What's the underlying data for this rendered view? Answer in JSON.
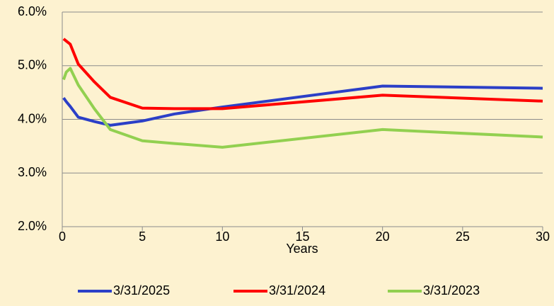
{
  "chart_data": {
    "type": "line",
    "x_label": "Years",
    "x": [
      0.083,
      0.25,
      0.5,
      1,
      2,
      3,
      5,
      7,
      10,
      20,
      30
    ],
    "series": [
      {
        "name": "3/31/2025",
        "color": "#2b3fc7",
        "values": [
          4.4,
          4.33,
          4.24,
          4.04,
          3.96,
          3.89,
          3.97,
          4.1,
          4.23,
          4.62,
          4.58
        ]
      },
      {
        "name": "3/31/2024",
        "color": "#ff0000",
        "values": [
          5.5,
          5.46,
          5.4,
          5.03,
          4.7,
          4.41,
          4.21,
          4.2,
          4.2,
          4.45,
          4.34
        ]
      },
      {
        "name": "3/31/2023",
        "color": "#92d050",
        "values": [
          4.74,
          4.88,
          4.95,
          4.64,
          4.2,
          3.81,
          3.6,
          3.55,
          3.48,
          3.81,
          3.67
        ]
      }
    ],
    "xlim": [
      0,
      30
    ],
    "xticks": [
      0,
      5,
      10,
      15,
      20,
      25,
      30
    ],
    "ylim": [
      2,
      6
    ],
    "yticks": [
      {
        "value": 2,
        "label": "2.0%"
      },
      {
        "value": 3,
        "label": "3.0%"
      },
      {
        "value": 4,
        "label": "4.0%"
      },
      {
        "value": 5,
        "label": "5.0%"
      },
      {
        "value": 6,
        "label": "6.0%"
      }
    ],
    "grid": true,
    "legend": "bottom"
  }
}
